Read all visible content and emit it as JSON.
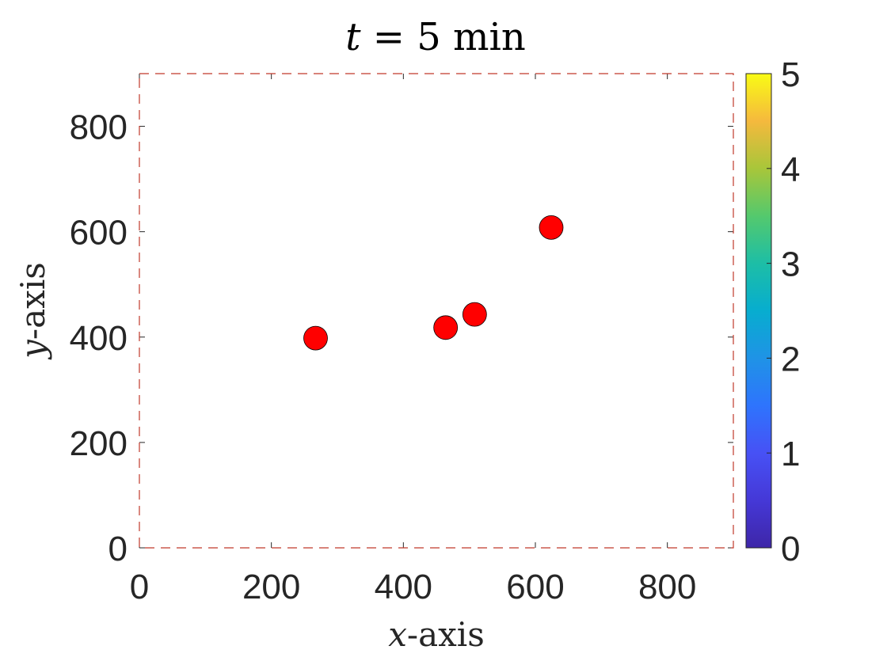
{
  "chart_data": {
    "type": "scatter",
    "title": {
      "var": "t",
      "rest": " = 5 min"
    },
    "xlabel": {
      "var": "x",
      "rest": "-axis"
    },
    "ylabel": {
      "var": "y",
      "rest": "-axis"
    },
    "xlim": [
      0,
      900
    ],
    "ylim": [
      0,
      900
    ],
    "xticks": [
      0,
      200,
      400,
      600,
      800
    ],
    "yticks": [
      0,
      200,
      400,
      600,
      800
    ],
    "grid": false,
    "box": {
      "style": "dashed",
      "color": "#c0392b"
    },
    "marker": {
      "shape": "circle",
      "fill": "#ff0000",
      "edge": "#000000"
    },
    "points": [
      {
        "x": 267,
        "y": 398
      },
      {
        "x": 464,
        "y": 418
      },
      {
        "x": 508,
        "y": 443
      },
      {
        "x": 624,
        "y": 608
      }
    ],
    "colorbar": {
      "colormap": "parula",
      "range": [
        0,
        5
      ],
      "ticks": [
        0,
        1,
        2,
        3,
        4,
        5
      ]
    }
  }
}
